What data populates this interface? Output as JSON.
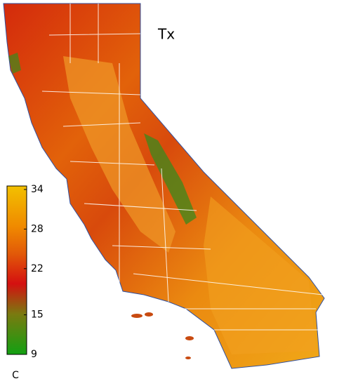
{
  "title": "Tx",
  "colorbar": {
    "lim": [
      9,
      34
    ],
    "ticks": [
      34,
      28,
      22,
      15,
      9
    ],
    "unit": "C"
  }
}
